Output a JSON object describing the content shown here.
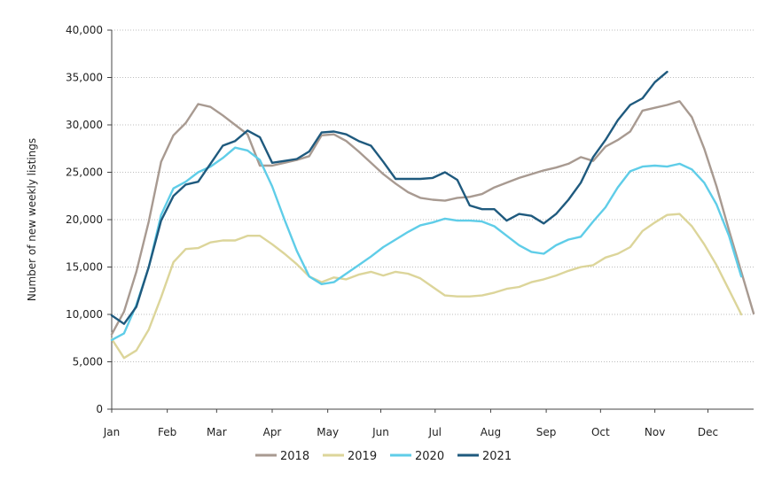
{
  "chart_data": {
    "type": "line",
    "title": "",
    "xlabel": "",
    "ylabel": "Number of new weekly listings",
    "ylim": [
      0,
      40000
    ],
    "yticks": [
      0,
      5000,
      10000,
      15000,
      20000,
      25000,
      30000,
      35000,
      40000
    ],
    "ytick_labels": [
      "0",
      "5,000",
      "10,000",
      "15,000",
      "20,000",
      "25,000",
      "30,000",
      "35,000",
      "40,000"
    ],
    "xlim": [
      0,
      52
    ],
    "month_ticks": [
      {
        "label": "Jan",
        "x": 0
      },
      {
        "label": "Feb",
        "x": 4.5
      },
      {
        "label": "Mar",
        "x": 8.5
      },
      {
        "label": "Apr",
        "x": 13
      },
      {
        "label": "May",
        "x": 17.5
      },
      {
        "label": "Jun",
        "x": 21.8
      },
      {
        "label": "Jul",
        "x": 26.2
      },
      {
        "label": "Aug",
        "x": 30.7
      },
      {
        "label": "Sep",
        "x": 35.2
      },
      {
        "label": "Oct",
        "x": 39.6
      },
      {
        "label": "Nov",
        "x": 44
      },
      {
        "label": "Dec",
        "x": 48.3
      }
    ],
    "grid": true,
    "legend_position": "bottom",
    "series": [
      {
        "name": "2018",
        "color": "#a89a91",
        "x_start": 0,
        "values": [
          7900,
          10300,
          14500,
          19800,
          26100,
          28900,
          30200,
          32200,
          31900,
          31000,
          30000,
          29000,
          25700,
          25700,
          26000,
          26300,
          26700,
          28900,
          29000,
          28300,
          27200,
          26000,
          24800,
          23800,
          22900,
          22300,
          22100,
          22000,
          22300,
          22400,
          22700,
          23400,
          23900,
          24400,
          24800,
          25200,
          25500,
          25900,
          26600,
          26200,
          27700,
          28400,
          29300,
          31500,
          31800,
          32100,
          32500,
          30800,
          27500,
          23500,
          18900,
          14500,
          10100
        ]
      },
      {
        "name": "2019",
        "color": "#dcd59a",
        "x_start": 0,
        "values": [
          7400,
          5400,
          6200,
          8400,
          11800,
          15500,
          16900,
          17000,
          17600,
          17800,
          17800,
          18300,
          18300,
          17400,
          16400,
          15300,
          14000,
          13400,
          13900,
          13700,
          14200,
          14500,
          14100,
          14500,
          14300,
          13800,
          12900,
          12000,
          11900,
          11900,
          12000,
          12300,
          12700,
          12900,
          13400,
          13700,
          14100,
          14600,
          15000,
          15200,
          16000,
          16400,
          17100,
          18800,
          19700,
          20500,
          20600,
          19300,
          17400,
          15200,
          12600,
          10000
        ]
      },
      {
        "name": "2020",
        "color": "#5fcde8",
        "x_start": 0,
        "values": [
          7300,
          8000,
          11000,
          15000,
          20500,
          23300,
          24000,
          25000,
          25600,
          26500,
          27600,
          27300,
          26300,
          23500,
          20000,
          16700,
          14000,
          13200,
          13400,
          14300,
          15200,
          16100,
          17100,
          17900,
          18700,
          19400,
          19700,
          20100,
          19900,
          19900,
          19800,
          19300,
          18300,
          17300,
          16600,
          16400,
          17300,
          17900,
          18200,
          19800,
          21300,
          23400,
          25100,
          25600,
          25700,
          25600,
          25900,
          25300,
          23900,
          21600,
          18300,
          14000
        ]
      },
      {
        "name": "2021",
        "color": "#1f5a7e",
        "x_start": 0,
        "values": [
          9900,
          9000,
          10800,
          15000,
          19900,
          22500,
          23700,
          24000,
          25900,
          27800,
          28300,
          29400,
          28700,
          26000,
          26200,
          26400,
          27200,
          29200,
          29300,
          29000,
          28300,
          27800,
          26100,
          24300,
          24300,
          24300,
          24400,
          25000,
          24200,
          21500,
          21100,
          21100,
          19900,
          20600,
          20400,
          19600,
          20600,
          22100,
          23900,
          26600,
          28400,
          30500,
          32100,
          32800,
          34500,
          35600
        ]
      }
    ]
  }
}
